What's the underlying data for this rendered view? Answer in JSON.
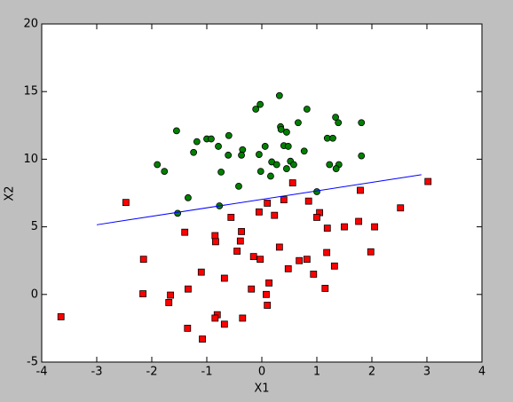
{
  "chart_data": {
    "type": "scatter",
    "x_label": "X1",
    "y_label": "X2",
    "xlim": [
      -4,
      4
    ],
    "ylim": [
      -5,
      20
    ],
    "xticks": [
      -4,
      -3,
      -2,
      -1,
      0,
      1,
      2,
      3,
      4
    ],
    "yticks": [
      -5,
      0,
      5,
      10,
      15,
      20
    ],
    "grid": false,
    "series": [
      {
        "marker": "circle",
        "color": "#008000",
        "x": [
          0.32,
          -0.03,
          -0.11,
          0.82,
          1.34,
          0.66,
          1.81,
          1.39,
          0.34,
          0.35,
          -1.55,
          0.45,
          -0.6,
          1.19,
          1.29,
          -1.0,
          -0.92,
          -1.18,
          0.06,
          0.4,
          0.48,
          -0.79,
          -0.35,
          -1.24,
          -0.61,
          -0.37,
          -0.05,
          0.77,
          1.81,
          0.52,
          0.58,
          0.18,
          0.27,
          1.23,
          1.4,
          1.35,
          0.45,
          -1.9,
          -1.77,
          -0.02,
          -0.74,
          0.16,
          -0.42,
          -1.34,
          1.0,
          -0.77,
          -1.53
        ],
        "y": [
          14.7,
          14.05,
          13.7,
          13.7,
          13.1,
          12.7,
          12.7,
          12.7,
          12.4,
          12.2,
          12.1,
          12.0,
          11.75,
          11.55,
          11.55,
          11.5,
          11.5,
          11.3,
          10.95,
          11.0,
          10.95,
          10.95,
          10.7,
          10.5,
          10.3,
          10.3,
          10.35,
          10.6,
          10.25,
          9.85,
          9.6,
          9.8,
          9.6,
          9.6,
          9.6,
          9.3,
          9.3,
          9.6,
          9.1,
          9.1,
          9.05,
          8.75,
          8.0,
          7.15,
          7.6,
          6.55,
          6.0
        ]
      },
      {
        "marker": "square",
        "color": "#ff0000",
        "x": [
          -2.47,
          0.56,
          1.79,
          3.02,
          0.4,
          0.85,
          0.1,
          -0.05,
          0.23,
          1.05,
          1.0,
          -0.56,
          2.52,
          1.76,
          2.05,
          1.19,
          1.5,
          -1.4,
          -0.37,
          -0.85,
          -0.84,
          -0.39,
          0.32,
          -0.45,
          1.18,
          1.98,
          -2.15,
          -0.15,
          -0.03,
          0.68,
          0.82,
          1.32,
          0.48,
          -1.1,
          0.94,
          -0.68,
          0.13,
          1.15,
          -1.34,
          -0.19,
          -2.16,
          0.08,
          -1.66,
          -1.69,
          0.1,
          -3.65,
          -0.35,
          -0.81,
          -0.85,
          -0.68,
          -1.35,
          -1.08
        ],
        "y": [
          6.8,
          8.25,
          7.7,
          8.35,
          7.0,
          6.9,
          6.75,
          6.1,
          5.85,
          6.05,
          5.7,
          5.7,
          6.4,
          5.4,
          5.0,
          4.9,
          5.0,
          4.6,
          4.65,
          4.35,
          3.9,
          3.95,
          3.5,
          3.2,
          3.1,
          3.15,
          2.6,
          2.8,
          2.6,
          2.5,
          2.6,
          2.1,
          1.9,
          1.65,
          1.5,
          1.2,
          0.85,
          0.45,
          0.4,
          0.4,
          0.05,
          0.0,
          -0.05,
          -0.6,
          -0.8,
          -1.65,
          -1.75,
          -1.5,
          -1.75,
          -2.2,
          -2.5,
          -3.3
        ]
      },
      {
        "marker": "line",
        "color": "#0000ff",
        "x": [
          -3.0,
          2.9
        ],
        "y": [
          5.15,
          8.85
        ]
      }
    ]
  }
}
